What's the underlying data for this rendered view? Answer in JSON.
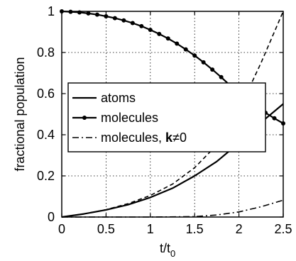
{
  "chart_data": {
    "type": "line",
    "xlabel": "t/t",
    "xlabel_subscript": "0",
    "ylabel": "fractional population",
    "xlim": [
      0,
      2.5
    ],
    "ylim": [
      0,
      1
    ],
    "xticks": [
      0,
      0.5,
      1,
      1.5,
      2,
      2.5
    ],
    "xtick_labels": [
      "0",
      "0.5",
      "1",
      "1.5",
      "2",
      "2.5"
    ],
    "yticks": [
      0,
      0.2,
      0.4,
      0.6,
      0.8,
      1
    ],
    "ytick_labels": [
      "0",
      "0.2",
      "0.4",
      "0.6",
      "0.8",
      "1"
    ],
    "grid": true,
    "legend_position": "center-left",
    "legend": [
      {
        "label": "atoms",
        "style": "solid"
      },
      {
        "label": "molecules",
        "style": "solid-dots"
      },
      {
        "label_prefix": "molecules, ",
        "label_bold": "k",
        "label_suffix": "≠0",
        "style": "dashdot"
      }
    ],
    "series": [
      {
        "name": "atoms",
        "style": "solid",
        "x": [
          0,
          0.25,
          0.5,
          0.75,
          1.0,
          1.25,
          1.5,
          1.75,
          2.0,
          2.25,
          2.5
        ],
        "y": [
          0,
          0.015,
          0.035,
          0.06,
          0.095,
          0.14,
          0.2,
          0.27,
          0.36,
          0.46,
          0.55
        ]
      },
      {
        "name": "molecules",
        "style": "solid-dots",
        "x": [
          0,
          0.1,
          0.2,
          0.3,
          0.4,
          0.5,
          0.6,
          0.7,
          0.8,
          0.9,
          1.0,
          1.1,
          1.2,
          1.3,
          1.4,
          1.5,
          1.6,
          1.7,
          1.8,
          1.9,
          2.0,
          2.1,
          2.2,
          2.3,
          2.4,
          2.5
        ],
        "y": [
          1.0,
          0.998,
          0.995,
          0.99,
          0.984,
          0.976,
          0.967,
          0.956,
          0.943,
          0.928,
          0.91,
          0.89,
          0.868,
          0.843,
          0.815,
          0.785,
          0.752,
          0.717,
          0.68,
          0.64,
          0.598,
          0.595,
          0.55,
          0.507,
          0.48,
          0.455
        ]
      },
      {
        "style": "dashed",
        "x": [
          0,
          0.25,
          0.5,
          0.75,
          1.0,
          1.25,
          1.5,
          1.75,
          2.0,
          2.25,
          2.5
        ],
        "y": [
          0,
          0.015,
          0.036,
          0.065,
          0.105,
          0.16,
          0.24,
          0.35,
          0.52,
          0.75,
          1.0
        ]
      },
      {
        "name": "molecules, k≠0",
        "style": "dashdot",
        "x": [
          0,
          0.5,
          1.0,
          1.5,
          1.75,
          2.0,
          2.25,
          2.5
        ],
        "y": [
          0,
          0,
          0,
          0.002,
          0.01,
          0.025,
          0.05,
          0.082
        ]
      }
    ]
  }
}
